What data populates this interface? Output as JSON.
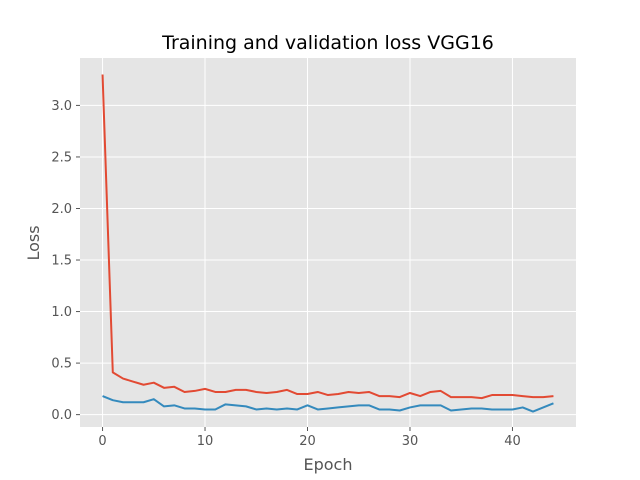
{
  "chart_data": {
    "type": "line",
    "title": "Training and validation loss VGG16",
    "xlabel": "Epoch",
    "ylabel": "Loss",
    "xlim": [
      -2.2,
      46.2
    ],
    "ylim": [
      -0.12,
      3.46
    ],
    "xticks": [
      0,
      10,
      20,
      30,
      40
    ],
    "yticks": [
      0.0,
      0.5,
      1.0,
      1.5,
      2.0,
      2.5,
      3.0
    ],
    "ytick_labels": [
      "0.0",
      "0.5",
      "1.0",
      "1.5",
      "2.0",
      "2.5",
      "3.0"
    ],
    "grid": true,
    "legend": "none",
    "x": [
      0,
      1,
      2,
      3,
      4,
      5,
      6,
      7,
      8,
      9,
      10,
      11,
      12,
      13,
      14,
      15,
      16,
      17,
      18,
      19,
      20,
      21,
      22,
      23,
      24,
      25,
      26,
      27,
      28,
      29,
      30,
      31,
      32,
      33,
      34,
      35,
      36,
      37,
      38,
      39,
      40,
      41,
      42,
      43,
      44
    ],
    "series": [
      {
        "color": "#E24A33",
        "values": [
          3.3,
          0.41,
          0.35,
          0.32,
          0.29,
          0.31,
          0.26,
          0.27,
          0.22,
          0.23,
          0.25,
          0.22,
          0.22,
          0.24,
          0.24,
          0.22,
          0.21,
          0.22,
          0.24,
          0.2,
          0.2,
          0.22,
          0.19,
          0.2,
          0.22,
          0.21,
          0.22,
          0.18,
          0.18,
          0.17,
          0.21,
          0.18,
          0.22,
          0.23,
          0.17,
          0.17,
          0.17,
          0.16,
          0.19,
          0.19,
          0.19,
          0.18,
          0.17,
          0.17,
          0.18
        ]
      },
      {
        "color": "#348ABD",
        "values": [
          0.18,
          0.14,
          0.12,
          0.12,
          0.12,
          0.15,
          0.08,
          0.09,
          0.06,
          0.06,
          0.05,
          0.05,
          0.1,
          0.09,
          0.08,
          0.05,
          0.06,
          0.05,
          0.06,
          0.05,
          0.09,
          0.05,
          0.06,
          0.07,
          0.08,
          0.09,
          0.09,
          0.05,
          0.05,
          0.04,
          0.07,
          0.09,
          0.09,
          0.09,
          0.04,
          0.05,
          0.06,
          0.06,
          0.05,
          0.05,
          0.05,
          0.07,
          0.03,
          0.07,
          0.11
        ]
      }
    ]
  }
}
